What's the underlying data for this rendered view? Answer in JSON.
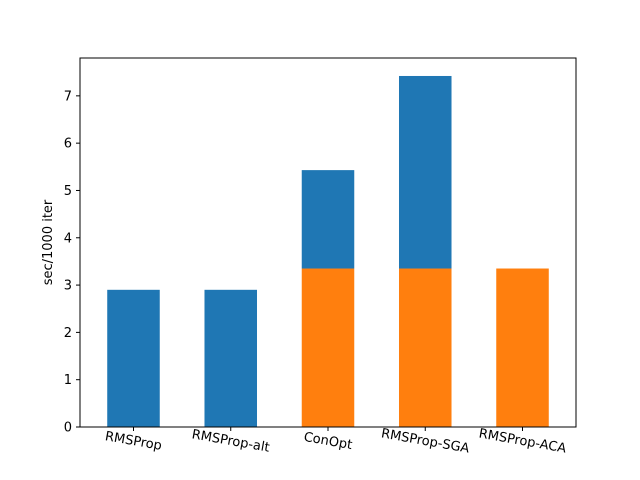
{
  "chart_data": {
    "type": "bar",
    "stacked": true,
    "categories": [
      "RMSProp",
      "RMSProp-alt",
      "ConOpt",
      "RMSProp-SGA",
      "RMSProp-ACA"
    ],
    "series": [
      {
        "color": "#ff7f0e",
        "values": [
          0,
          0,
          3.35,
          3.35,
          3.35
        ]
      },
      {
        "color": "#1f77b4",
        "values": [
          2.9,
          2.9,
          2.08,
          4.07,
          0
        ]
      }
    ],
    "title": "",
    "xlabel": "",
    "ylabel": "sec/1000 iter",
    "ylim": [
      0,
      7.8
    ],
    "yticks": [
      0,
      1,
      2,
      3,
      4,
      5,
      6,
      7
    ],
    "xtick_rotation_deg": 10,
    "grid": false,
    "legend": "none"
  }
}
